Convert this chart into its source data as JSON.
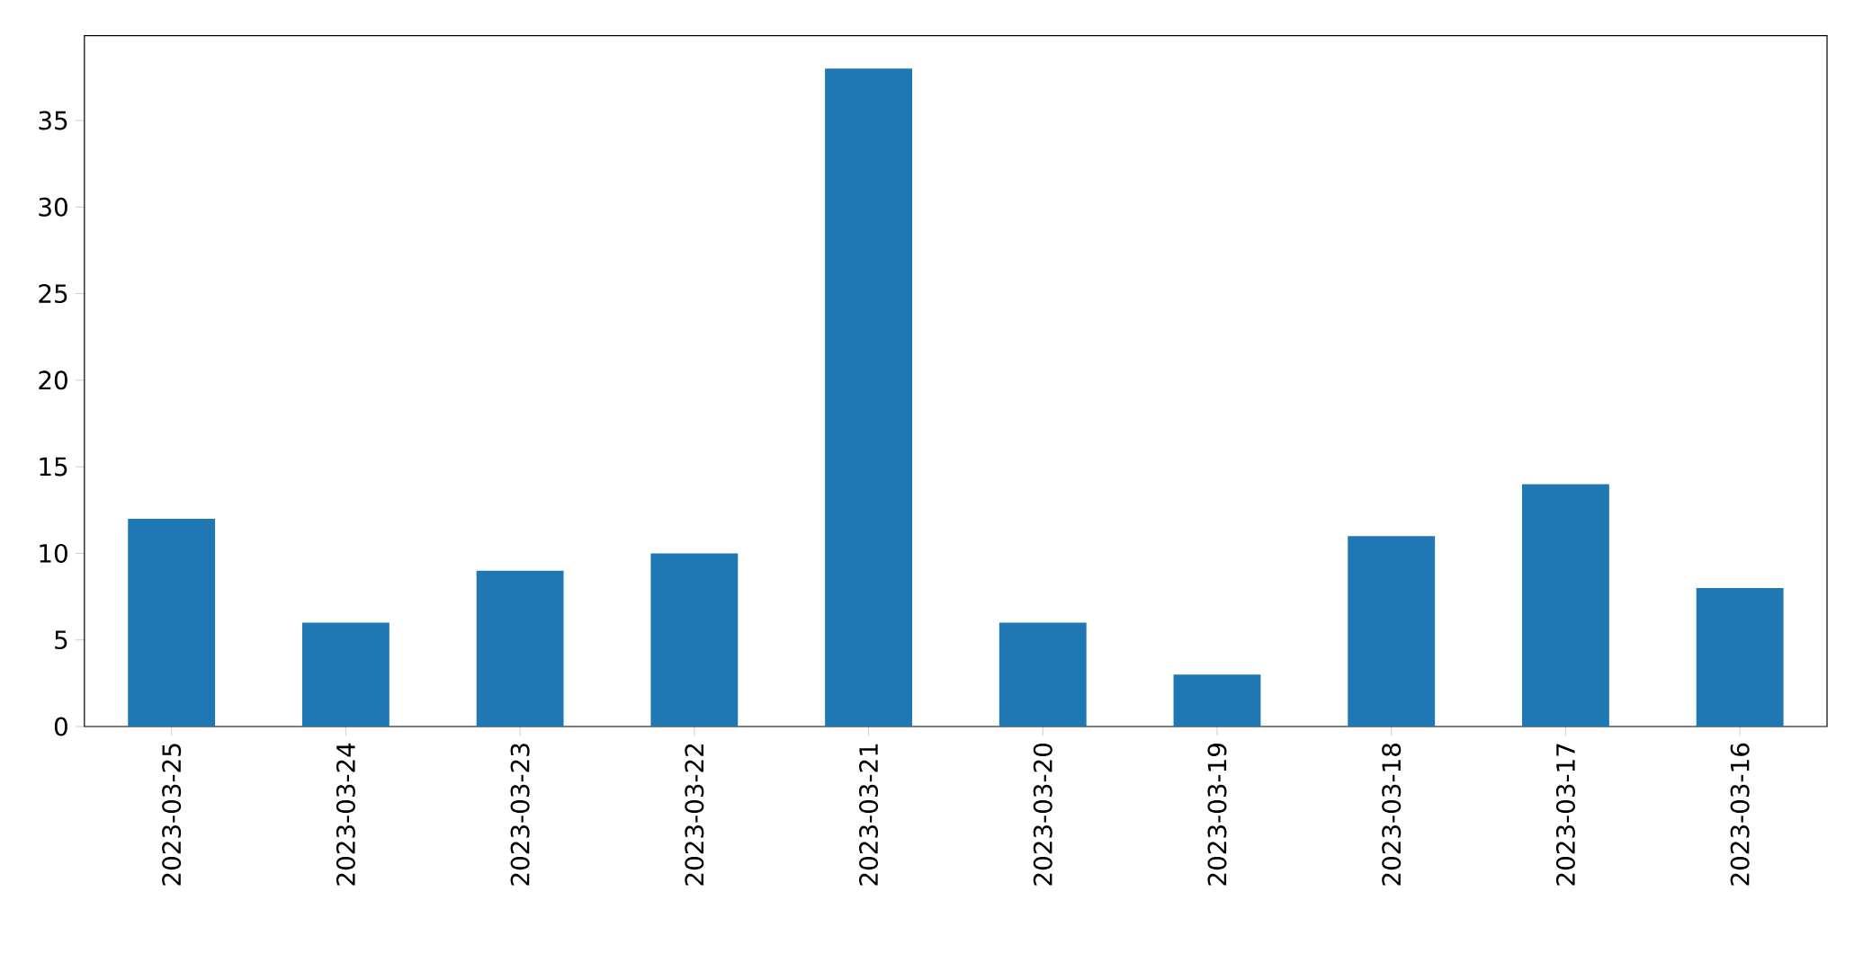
{
  "chart_data": {
    "type": "bar",
    "categories": [
      "2023-03-25",
      "2023-03-24",
      "2023-03-23",
      "2023-03-22",
      "2023-03-21",
      "2023-03-20",
      "2023-03-19",
      "2023-03-18",
      "2023-03-17",
      "2023-03-16"
    ],
    "values": [
      12,
      6,
      9,
      10,
      38,
      6,
      3,
      11,
      14,
      8
    ],
    "color": "#1f77b4",
    "ylim": [
      0,
      39.9
    ],
    "yticks": [
      0,
      5,
      10,
      15,
      20,
      25,
      30,
      35
    ],
    "grid": false
  }
}
